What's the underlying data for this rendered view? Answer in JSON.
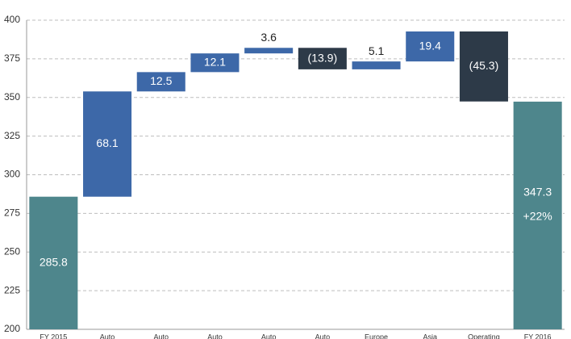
{
  "chart_data": {
    "type": "waterfall",
    "categories": [
      "FY 2015",
      "Auto",
      "Auto",
      "Auto",
      "Auto",
      "Auto",
      "Europe",
      "Asia",
      "Operating",
      "FY 2016"
    ],
    "values": [
      285.8,
      68.1,
      12.5,
      12.1,
      3.6,
      -13.9,
      5.1,
      19.4,
      -45.3,
      347.3
    ],
    "value_labels": [
      "285.8",
      "68.1",
      "12.5",
      "12.1",
      "3.6",
      "(13.9)",
      "5.1",
      "19.4",
      "(45.3)",
      "347.3"
    ],
    "measure": [
      "absolute",
      "relative",
      "relative",
      "relative",
      "relative",
      "relative",
      "relative",
      "relative",
      "relative",
      "absolute"
    ],
    "colors": {
      "absolute": "#4e868c",
      "increase": "#3d68a8",
      "decrease": "#2d3a48"
    },
    "annotation": "+22%",
    "ylim": [
      200,
      400
    ],
    "yticks": [
      200,
      225,
      250,
      275,
      300,
      325,
      350,
      375,
      400
    ],
    "grid": true
  }
}
